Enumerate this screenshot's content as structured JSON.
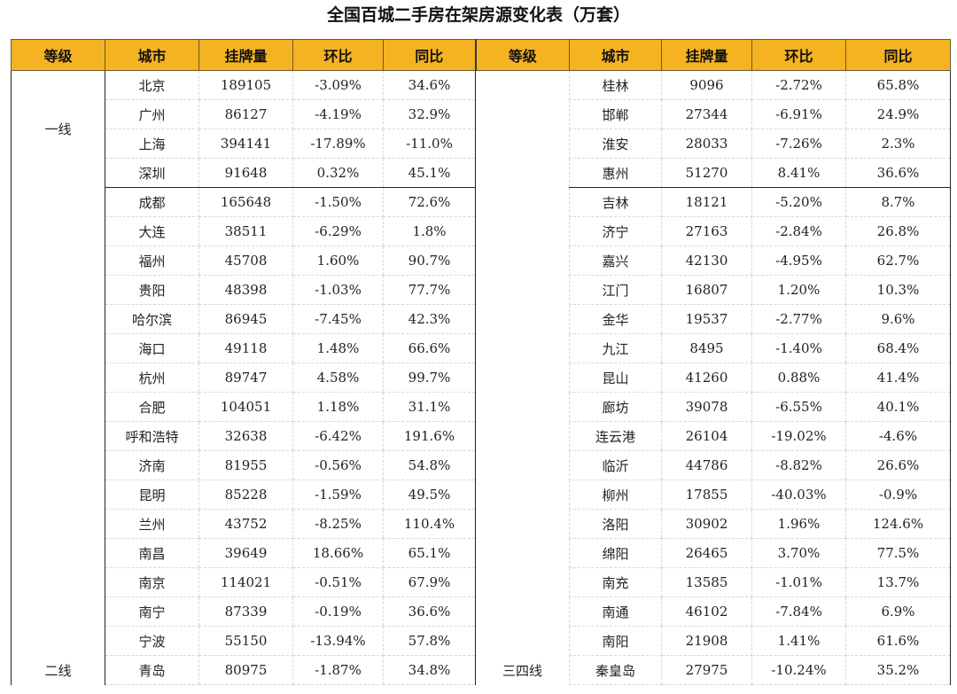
{
  "title": "全国百城二手房在架房源变化表（万套）",
  "headers": [
    "等级",
    "城市",
    "挂牌量",
    "环比",
    "同比",
    "等级",
    "城市",
    "挂牌量",
    "环比",
    "同比"
  ],
  "left_groups": [
    {
      "tier": "一线",
      "rows": [
        {
          "city": "北京",
          "listings": "189105",
          "mom": "-3.09%",
          "yoy": "34.6%"
        },
        {
          "city": "广州",
          "listings": "86127",
          "mom": "-4.19%",
          "yoy": "32.9%"
        },
        {
          "city": "上海",
          "listings": "394141",
          "mom": "-17.89%",
          "yoy": "-11.0%"
        },
        {
          "city": "深圳",
          "listings": "91648",
          "mom": "0.32%",
          "yoy": "45.1%"
        }
      ]
    },
    {
      "tier": "二线",
      "rows": [
        {
          "city": "成都",
          "listings": "165648",
          "mom": "-1.50%",
          "yoy": "72.6%"
        },
        {
          "city": "大连",
          "listings": "38511",
          "mom": "-6.29%",
          "yoy": "1.8%"
        },
        {
          "city": "福州",
          "listings": "45708",
          "mom": "1.60%",
          "yoy": "90.7%"
        },
        {
          "city": "贵阳",
          "listings": "48398",
          "mom": "-1.03%",
          "yoy": "77.7%"
        },
        {
          "city": "哈尔滨",
          "listings": "86945",
          "mom": "-7.45%",
          "yoy": "42.3%"
        },
        {
          "city": "海口",
          "listings": "49118",
          "mom": "1.48%",
          "yoy": "66.6%"
        },
        {
          "city": "杭州",
          "listings": "89747",
          "mom": "4.58%",
          "yoy": "99.7%"
        },
        {
          "city": "合肥",
          "listings": "104051",
          "mom": "1.18%",
          "yoy": "31.1%"
        },
        {
          "city": "呼和浩特",
          "listings": "32638",
          "mom": "-6.42%",
          "yoy": "191.6%"
        },
        {
          "city": "济南",
          "listings": "81955",
          "mom": "-0.56%",
          "yoy": "54.8%"
        },
        {
          "city": "昆明",
          "listings": "85228",
          "mom": "-1.59%",
          "yoy": "49.5%"
        },
        {
          "city": "兰州",
          "listings": "43752",
          "mom": "-8.25%",
          "yoy": "110.4%"
        },
        {
          "city": "南昌",
          "listings": "39649",
          "mom": "18.66%",
          "yoy": "65.1%"
        },
        {
          "city": "南京",
          "listings": "114021",
          "mom": "-0.51%",
          "yoy": "67.9%"
        },
        {
          "city": "南宁",
          "listings": "87339",
          "mom": "-0.19%",
          "yoy": "36.6%"
        },
        {
          "city": "宁波",
          "listings": "55150",
          "mom": "-13.94%",
          "yoy": "57.8%"
        },
        {
          "city": "青岛",
          "listings": "80975",
          "mom": "-1.87%",
          "yoy": "34.8%"
        }
      ]
    }
  ],
  "right_tier": "三四线",
  "right_rows": [
    {
      "city": "桂林",
      "listings": "9096",
      "mom": "-2.72%",
      "yoy": "65.8%"
    },
    {
      "city": "邯郸",
      "listings": "27344",
      "mom": "-6.91%",
      "yoy": "24.9%"
    },
    {
      "city": "淮安",
      "listings": "28033",
      "mom": "-7.26%",
      "yoy": "2.3%"
    },
    {
      "city": "惠州",
      "listings": "51270",
      "mom": "8.41%",
      "yoy": "36.6%"
    },
    {
      "city": "吉林",
      "listings": "18121",
      "mom": "-5.20%",
      "yoy": "8.7%"
    },
    {
      "city": "济宁",
      "listings": "27163",
      "mom": "-2.84%",
      "yoy": "26.8%"
    },
    {
      "city": "嘉兴",
      "listings": "42130",
      "mom": "-4.95%",
      "yoy": "62.7%"
    },
    {
      "city": "江门",
      "listings": "16807",
      "mom": "1.20%",
      "yoy": "10.3%"
    },
    {
      "city": "金华",
      "listings": "19537",
      "mom": "-2.77%",
      "yoy": "9.6%"
    },
    {
      "city": "九江",
      "listings": "8495",
      "mom": "-1.40%",
      "yoy": "68.4%"
    },
    {
      "city": "昆山",
      "listings": "41260",
      "mom": "0.88%",
      "yoy": "41.4%"
    },
    {
      "city": "廊坊",
      "listings": "39078",
      "mom": "-6.55%",
      "yoy": "40.1%"
    },
    {
      "city": "连云港",
      "listings": "26104",
      "mom": "-19.02%",
      "yoy": "-4.6%"
    },
    {
      "city": "临沂",
      "listings": "44786",
      "mom": "-8.82%",
      "yoy": "26.6%"
    },
    {
      "city": "柳州",
      "listings": "17855",
      "mom": "-40.03%",
      "yoy": "-0.9%"
    },
    {
      "city": "洛阳",
      "listings": "30902",
      "mom": "1.96%",
      "yoy": "124.6%"
    },
    {
      "city": "绵阳",
      "listings": "26465",
      "mom": "3.70%",
      "yoy": "77.5%"
    },
    {
      "city": "南充",
      "listings": "13585",
      "mom": "-1.01%",
      "yoy": "13.7%"
    },
    {
      "city": "南通",
      "listings": "46102",
      "mom": "-7.84%",
      "yoy": "6.9%"
    },
    {
      "city": "南阳",
      "listings": "21908",
      "mom": "1.41%",
      "yoy": "61.6%"
    },
    {
      "city": "秦皇岛",
      "listings": "27975",
      "mom": "-10.24%",
      "yoy": "35.2%"
    }
  ]
}
